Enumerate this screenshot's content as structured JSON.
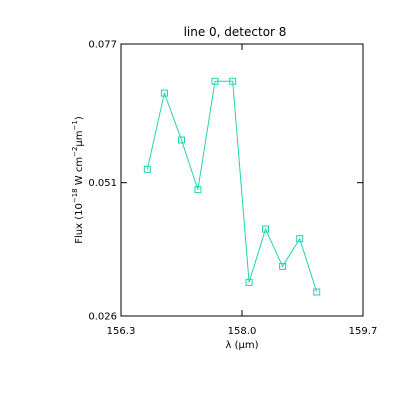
{
  "chart_data": {
    "type": "line",
    "title": "line 0, detector 8",
    "xlabel": "λ (μm)",
    "ylabel": "Flux (10",
    "ylabel_sup1": "−18",
    "ylabel_mid": " W cm",
    "ylabel_sup2": "−2",
    "ylabel_mid2": "μm",
    "ylabel_sup3": "−1",
    "ylabel_end": ")",
    "xlim": [
      156.3,
      159.7
    ],
    "ylim": [
      0.026,
      0.077
    ],
    "xticks": [
      156.3,
      158.0,
      159.7
    ],
    "xtick_labels": [
      "156.3",
      "158.0",
      "159.7"
    ],
    "yticks": [
      0.026,
      0.051,
      0.077
    ],
    "ytick_labels": [
      "0.026",
      "0.051",
      "0.077"
    ],
    "series_color": "#22d3b0",
    "series": [
      {
        "x": [
          156.67,
          156.91,
          157.15,
          157.38,
          157.62,
          157.87,
          158.1,
          158.33,
          158.57,
          158.81,
          159.05
        ],
        "y": [
          0.0535,
          0.0678,
          0.059,
          0.0497,
          0.07,
          0.07,
          0.0323,
          0.0423,
          0.0353,
          0.0405,
          0.0305
        ]
      }
    ]
  }
}
